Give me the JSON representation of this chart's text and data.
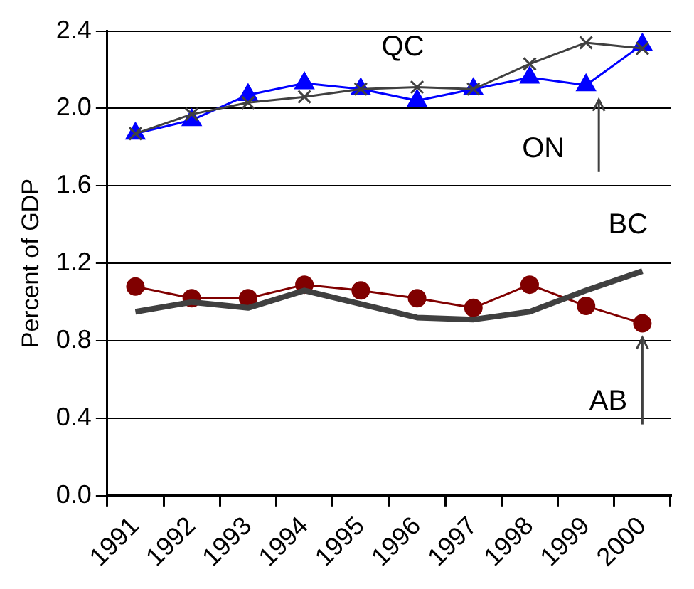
{
  "chart_data": {
    "type": "line",
    "ylabel": "Percent of GDP",
    "categories": [
      "1991",
      "1992",
      "1993",
      "1994",
      "1995",
      "1996",
      "1997",
      "1998",
      "1999",
      "2000"
    ],
    "series": [
      {
        "name": "QC",
        "color": "#404040",
        "marker": "cross",
        "values": [
          1.87,
          1.97,
          2.03,
          2.06,
          2.1,
          2.11,
          2.1,
          2.23,
          2.34,
          2.31
        ]
      },
      {
        "name": "ON",
        "color": "#0000ff",
        "marker": "triangle",
        "values": [
          1.87,
          1.94,
          2.07,
          2.13,
          2.1,
          2.04,
          2.1,
          2.16,
          2.12,
          2.33
        ]
      },
      {
        "name": "BC",
        "color": "#404040",
        "marker": "none",
        "values": [
          0.95,
          1.0,
          0.97,
          1.06,
          0.99,
          0.92,
          0.91,
          0.95,
          1.06,
          1.16
        ]
      },
      {
        "name": "AB",
        "color": "#800000",
        "marker": "circle",
        "values": [
          1.08,
          1.02,
          1.02,
          1.09,
          1.06,
          1.02,
          0.97,
          1.09,
          0.98,
          0.89
        ]
      }
    ],
    "ylim": [
      0,
      2.4
    ],
    "yticks": [
      {
        "value": 0,
        "label": "0.0"
      },
      {
        "value": 0.4,
        "label": "0.4"
      },
      {
        "value": 0.8,
        "label": "0.8"
      },
      {
        "value": 1.2,
        "label": "1.2"
      },
      {
        "value": 1.6,
        "label": "1.6"
      },
      {
        "value": 2,
        "label": "2.0"
      },
      {
        "value": 2.4,
        "label": "2.4"
      }
    ],
    "grid": "y",
    "legend": false
  }
}
